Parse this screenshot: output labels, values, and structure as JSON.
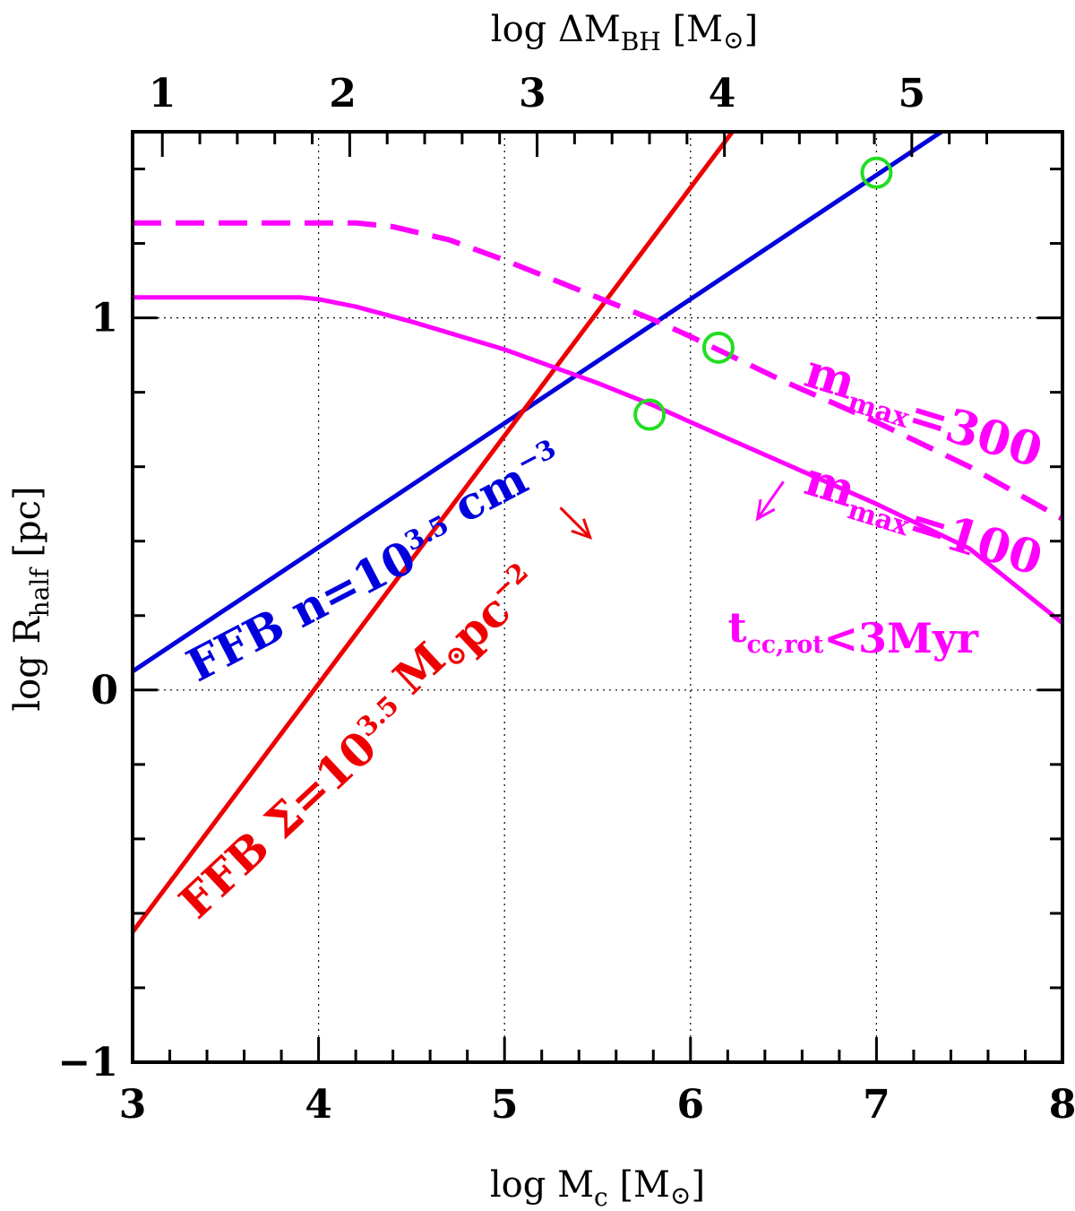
{
  "chart_data": {
    "type": "line",
    "xlabel": "log M",
    "xlabel_sub": "c",
    "xlabel_unit": "[M",
    "xlabel_unit_end": "]",
    "ylabel": "log R",
    "ylabel_sub": "half",
    "ylabel_unit": "[pc]",
    "top_label": "log ΔM",
    "top_label_sub": "BH",
    "top_label_unit": "[M",
    "top_label_unit_end": "]",
    "xlim": [
      3,
      8
    ],
    "ylim": [
      -1,
      1.5
    ],
    "grid": true,
    "x_ticks": [
      "3",
      "4",
      "5",
      "6",
      "7",
      "8"
    ],
    "y_ticks": [
      "−1",
      "0",
      "1"
    ],
    "top_ticks": [
      "1",
      "2",
      "3",
      "4",
      "5"
    ],
    "top_axis_map": {
      "log_dMbh": [
        1,
        2,
        3,
        4,
        5
      ],
      "log_Mc": [
        3.16,
        4.13,
        5.15,
        6.17,
        7.19
      ]
    },
    "series": [
      {
        "color": "#0000dd",
        "style": "solid",
        "x": [
          3.0,
          8.0
        ],
        "y": [
          0.05,
          1.717
        ]
      },
      {
        "color": "#ee0000",
        "style": "solid",
        "x": [
          3.0,
          8.0
        ],
        "y": [
          -0.65,
          2.683
        ]
      },
      {
        "color": "#ff00ff",
        "style": "solid",
        "x": [
          3.0,
          3.3,
          3.6,
          3.9,
          4.0,
          4.2,
          4.5,
          5.0,
          5.5,
          5.8,
          6.0,
          6.5,
          7.0,
          7.5,
          8.0
        ],
        "y": [
          1.055,
          1.055,
          1.055,
          1.055,
          1.05,
          1.03,
          0.99,
          0.915,
          0.825,
          0.765,
          0.72,
          0.61,
          0.5,
          0.38,
          0.18
        ]
      },
      {
        "color": "#ff00ff",
        "style": "dashed",
        "x": [
          3.0,
          3.3,
          3.6,
          3.9,
          4.2,
          4.4,
          4.7,
          5.0,
          5.5,
          5.8,
          6.0,
          6.5,
          7.0,
          7.5,
          8.0
        ],
        "y": [
          1.255,
          1.255,
          1.255,
          1.255,
          1.255,
          1.245,
          1.21,
          1.155,
          1.055,
          0.995,
          0.95,
          0.83,
          0.72,
          0.6,
          0.46
        ]
      }
    ],
    "markers": [
      {
        "x": 5.78,
        "y": 0.74
      },
      {
        "x": 6.15,
        "y": 0.92
      },
      {
        "x": 7.0,
        "y": 1.39
      }
    ],
    "arrows": [
      {
        "x1": 5.3,
        "y1": 0.49,
        "x2": 5.46,
        "y2": 0.41,
        "color": "#ee0000"
      },
      {
        "x1": 6.5,
        "y1": 0.56,
        "x2": 6.36,
        "y2": 0.46,
        "color": "#ff00ff"
      }
    ],
    "annotations": [
      {
        "id": "blue",
        "color": "#0000dd",
        "main": "FFB n=10",
        "sup": "3.5",
        "tail": " cm",
        "tail_sup": "−3",
        "x": 3.35,
        "y": 0.02,
        "angle": -27.5,
        "size": 50
      },
      {
        "id": "red",
        "color": "#ee0000",
        "main": "FFB Σ=10",
        "sup": "3.5",
        "tail": " M",
        "tail_sub": "⊙",
        "tail2": "pc",
        "tail_sup": "−2",
        "x": 3.35,
        "y": -0.62,
        "angle": -43,
        "size": 50
      },
      {
        "id": "m300",
        "color": "#ff00ff",
        "main": "m",
        "sub": "max",
        "tail": "=300",
        "x": 6.6,
        "y": 0.82,
        "angle": 17,
        "size": 52
      },
      {
        "id": "m100",
        "color": "#ff00ff",
        "main": "m",
        "sub": "max",
        "tail": "=100",
        "x": 6.6,
        "y": 0.53,
        "angle": 17,
        "size": 52
      },
      {
        "id": "tcc",
        "color": "#ff00ff",
        "main": "t",
        "sub": "cc,rot",
        "tail": "<3Myr",
        "x": 6.2,
        "y": 0.13,
        "angle": 0,
        "size": 46
      }
    ]
  }
}
